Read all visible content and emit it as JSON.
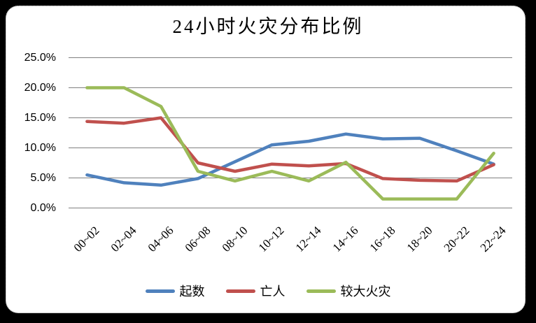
{
  "chart_data": {
    "type": "line",
    "title": "24小时火灾分布比例",
    "categories": [
      "00~02",
      "02~04",
      "04~06",
      "06~08",
      "08~10",
      "10~12",
      "12~14",
      "14~16",
      "16~18",
      "18~20",
      "20~22",
      "22~24"
    ],
    "series": [
      {
        "name": "起数",
        "color": "#4F81BD",
        "values": [
          5.5,
          4.2,
          3.8,
          4.9,
          7.7,
          10.5,
          11.1,
          12.3,
          11.5,
          11.6,
          9.5,
          7.3
        ]
      },
      {
        "name": "亡人",
        "color": "#C0504D",
        "values": [
          14.4,
          14.1,
          15.0,
          7.5,
          6.1,
          7.3,
          7.0,
          7.4,
          4.9,
          4.6,
          4.5,
          7.2
        ]
      },
      {
        "name": "较大火灾",
        "color": "#9BBB59",
        "values": [
          20.0,
          20.0,
          16.9,
          6.1,
          4.5,
          6.1,
          4.5,
          7.6,
          1.5,
          1.5,
          1.5,
          9.1
        ]
      }
    ],
    "xlabel": "",
    "ylabel": "",
    "ylim": [
      0,
      25
    ],
    "y_tick_step": 5,
    "y_tick_labels": [
      "0.0%",
      "5.0%",
      "10.0%",
      "15.0%",
      "20.0%",
      "25.0%"
    ],
    "grid": "horizontal",
    "legend_position": "bottom"
  },
  "colors": {
    "gridline": "#808080",
    "frame_background": "#000000",
    "plot_background": "#FFFFFF",
    "series_blue": "#4F81BD",
    "series_red": "#C0504D",
    "series_green": "#9BBB59"
  }
}
